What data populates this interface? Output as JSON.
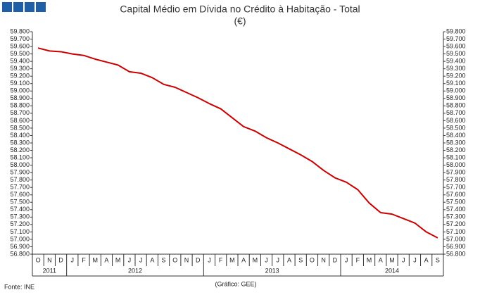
{
  "chart_data": {
    "type": "line",
    "title": "Capital Médio em Dívida no Crédito à Habitação - Total",
    "subtitle": "(€)",
    "source": "Fonte: INE",
    "credit": "(Gráfico: GEE)",
    "categories": [
      "O",
      "N",
      "D",
      "J",
      "F",
      "M",
      "A",
      "M",
      "J",
      "J",
      "A",
      "S",
      "O",
      "N",
      "D",
      "J",
      "F",
      "M",
      "A",
      "M",
      "J",
      "J",
      "A",
      "S",
      "O",
      "N",
      "D",
      "J",
      "F",
      "M",
      "A",
      "M",
      "J",
      "J",
      "A",
      "S"
    ],
    "years": [
      "2011",
      "2012",
      "2013",
      "2014"
    ],
    "series": [
      {
        "name": "Total",
        "color": "#cc0000",
        "values": [
          59580,
          59540,
          59530,
          59500,
          59480,
          59430,
          59390,
          59350,
          59260,
          59240,
          59180,
          59090,
          59050,
          58980,
          58910,
          58830,
          58760,
          58640,
          58520,
          58460,
          58370,
          58300,
          58220,
          58140,
          58050,
          57930,
          57830,
          57770,
          57670,
          57490,
          57360,
          57340,
          57280,
          57220,
          57100,
          57020
        ]
      }
    ],
    "ylim": [
      56800,
      59800
    ],
    "yticks": [
      {
        "value": 56800,
        "label": "56.800"
      },
      {
        "value": 56900,
        "label": "56.900"
      },
      {
        "value": 57000,
        "label": "57.000"
      },
      {
        "value": 57100,
        "label": "57.100"
      },
      {
        "value": 57200,
        "label": "57.200"
      },
      {
        "value": 57300,
        "label": "57.300"
      },
      {
        "value": 57400,
        "label": "57.400"
      },
      {
        "value": 57500,
        "label": "57.500"
      },
      {
        "value": 57600,
        "label": "57.600"
      },
      {
        "value": 57700,
        "label": "57.700"
      },
      {
        "value": 57800,
        "label": "57.800"
      },
      {
        "value": 57900,
        "label": "57.900"
      },
      {
        "value": 58000,
        "label": "58.000"
      },
      {
        "value": 58100,
        "label": "58.100"
      },
      {
        "value": 58200,
        "label": "58.200"
      },
      {
        "value": 58300,
        "label": "58.300"
      },
      {
        "value": 58400,
        "label": "58.400"
      },
      {
        "value": 58500,
        "label": "58.500"
      },
      {
        "value": 58600,
        "label": "58.600"
      },
      {
        "value": 58700,
        "label": "58.700"
      },
      {
        "value": 58800,
        "label": "58.800"
      },
      {
        "value": 58900,
        "label": "58.900"
      },
      {
        "value": 59000,
        "label": "59.000"
      },
      {
        "value": 59100,
        "label": "59.100"
      },
      {
        "value": 59200,
        "label": "59.200"
      },
      {
        "value": 59300,
        "label": "59.300"
      },
      {
        "value": 59400,
        "label": "59.400"
      },
      {
        "value": 59500,
        "label": "59.500"
      },
      {
        "value": 59600,
        "label": "59.600"
      },
      {
        "value": 59700,
        "label": "59.700"
      },
      {
        "value": 59800,
        "label": "59.800"
      }
    ],
    "grid": false
  }
}
